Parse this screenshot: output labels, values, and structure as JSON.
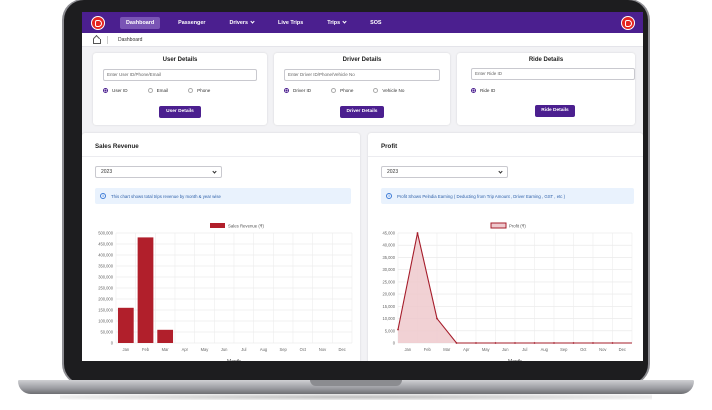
{
  "nav": {
    "items": [
      {
        "label": "Dashboard",
        "active": true,
        "dropdown": false
      },
      {
        "label": "Passenger",
        "active": false,
        "dropdown": false
      },
      {
        "label": "Drivers",
        "active": false,
        "dropdown": true
      },
      {
        "label": "Live Trips",
        "active": false,
        "dropdown": false
      },
      {
        "label": "Trips",
        "active": false,
        "dropdown": true
      },
      {
        "label": "SOS",
        "active": false,
        "dropdown": false
      }
    ],
    "brand_color": "#4b1f8f",
    "logo_color": "#e52521"
  },
  "breadcrumb": {
    "icon": "home-icon",
    "label": "Dashboard"
  },
  "user_details": {
    "title": "User Details",
    "placeholder": "Enter User ID/Phone/Email",
    "options": [
      "User ID",
      "Email",
      "Phone"
    ],
    "selected": "User ID",
    "button": "User Details"
  },
  "driver_details": {
    "title": "Driver Details",
    "placeholder": "Enter Driver ID/Phone/Vehicle No",
    "options": [
      "Driver ID",
      "Phone",
      "Vehicle No"
    ],
    "selected": "Driver ID",
    "button": "Driver Details"
  },
  "ride_details": {
    "title": "Ride Details",
    "placeholder": "Enter Ride ID",
    "options": [
      "Ride ID"
    ],
    "selected": "Ride ID",
    "button": "Ride Details"
  },
  "sales": {
    "title": "Sales Revenue",
    "year": "2023",
    "info": "This chart shows total trips revenue by month & year wise"
  },
  "profit": {
    "title": "Profit",
    "year": "2023",
    "info": "Profit Shows Pelndia Earning ( Deducting from Trip Amount , Driver Earning , GST , etc )"
  },
  "chart_data": [
    {
      "type": "bar",
      "legend": "Sales Revenue (₹)",
      "color": "#b11f2b",
      "categories": [
        "Jan",
        "Feb",
        "Mar",
        "Apr",
        "May",
        "Jun",
        "Jul",
        "Aug",
        "Sep",
        "Oct",
        "Nov",
        "Dec"
      ],
      "values": [
        160000,
        480000,
        60000,
        0,
        0,
        0,
        0,
        0,
        0,
        0,
        0,
        0
      ],
      "yticks": [
        "0",
        "50,000",
        "100,000",
        "150,000",
        "200,000",
        "250,000",
        "300,000",
        "350,000",
        "400,000",
        "450,000",
        "500,000"
      ],
      "ylim": [
        0,
        500000
      ],
      "xlabel": "Month",
      "grid": true,
      "legend_position": "top"
    },
    {
      "type": "area",
      "legend": "Profit (₹)",
      "color": "#a51c2a",
      "fill": "#eec9cd",
      "categories": [
        "Jan",
        "Feb",
        "Mar",
        "Apr",
        "May",
        "Jun",
        "Jul",
        "Aug",
        "Sep",
        "Oct",
        "Nov",
        "Dec"
      ],
      "values": [
        5500,
        45000,
        10000,
        0,
        0,
        0,
        0,
        0,
        0,
        0,
        0,
        0
      ],
      "yticks": [
        "0",
        "5,000",
        "10,000",
        "15,000",
        "20,000",
        "25,000",
        "30,000",
        "35,000",
        "40,000",
        "45,000"
      ],
      "ylim": [
        0,
        45000
      ],
      "xlabel": "Month",
      "grid": true,
      "legend_position": "top"
    }
  ]
}
